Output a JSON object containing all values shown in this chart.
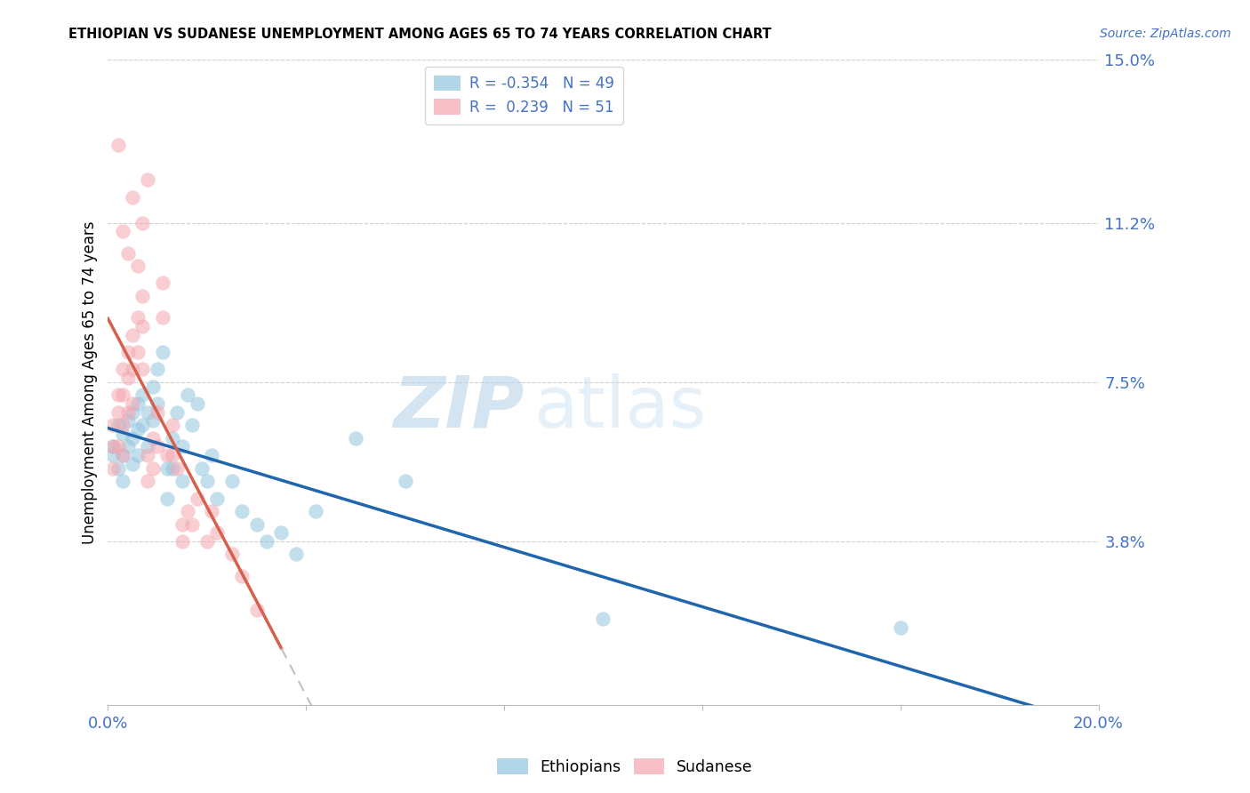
{
  "title": "ETHIOPIAN VS SUDANESE UNEMPLOYMENT AMONG AGES 65 TO 74 YEARS CORRELATION CHART",
  "source": "Source: ZipAtlas.com",
  "ylabel": "Unemployment Among Ages 65 to 74 years",
  "xlim": [
    0.0,
    0.2
  ],
  "ylim": [
    0.0,
    0.15
  ],
  "ytick_labels_right": [
    "15.0%",
    "11.2%",
    "7.5%",
    "3.8%"
  ],
  "ytick_values_right": [
    0.15,
    0.112,
    0.075,
    0.038
  ],
  "watermark_zip": "ZIP",
  "watermark_atlas": "atlas",
  "legend_ethiopians_R": "-0.354",
  "legend_ethiopians_N": "49",
  "legend_sudanese_R": "0.239",
  "legend_sudanese_N": "51",
  "ethiopian_color": "#92c5de",
  "sudanese_color": "#f4a6b0",
  "trend_ethiopian_color": "#2166ac",
  "trend_sudanese_color": "#d6604d",
  "trend_extension_color": "#c0c0c0",
  "ethiopian_x": [
    0.001,
    0.001,
    0.002,
    0.002,
    0.003,
    0.003,
    0.003,
    0.004,
    0.004,
    0.005,
    0.005,
    0.005,
    0.006,
    0.006,
    0.006,
    0.007,
    0.007,
    0.008,
    0.008,
    0.009,
    0.009,
    0.01,
    0.01,
    0.011,
    0.012,
    0.012,
    0.013,
    0.013,
    0.014,
    0.015,
    0.015,
    0.016,
    0.017,
    0.018,
    0.019,
    0.02,
    0.021,
    0.022,
    0.025,
    0.027,
    0.03,
    0.032,
    0.035,
    0.038,
    0.042,
    0.05,
    0.06,
    0.1,
    0.16
  ],
  "ethiopian_y": [
    0.06,
    0.058,
    0.065,
    0.055,
    0.063,
    0.058,
    0.052,
    0.066,
    0.06,
    0.068,
    0.062,
    0.056,
    0.07,
    0.064,
    0.058,
    0.072,
    0.065,
    0.068,
    0.06,
    0.074,
    0.066,
    0.078,
    0.07,
    0.082,
    0.055,
    0.048,
    0.062,
    0.055,
    0.068,
    0.06,
    0.052,
    0.072,
    0.065,
    0.07,
    0.055,
    0.052,
    0.058,
    0.048,
    0.052,
    0.045,
    0.042,
    0.038,
    0.04,
    0.035,
    0.045,
    0.062,
    0.052,
    0.02,
    0.018
  ],
  "sudanese_x": [
    0.001,
    0.001,
    0.001,
    0.002,
    0.002,
    0.002,
    0.003,
    0.003,
    0.003,
    0.003,
    0.004,
    0.004,
    0.004,
    0.005,
    0.005,
    0.005,
    0.006,
    0.006,
    0.007,
    0.007,
    0.007,
    0.008,
    0.008,
    0.009,
    0.009,
    0.01,
    0.01,
    0.011,
    0.011,
    0.012,
    0.013,
    0.013,
    0.014,
    0.015,
    0.015,
    0.016,
    0.017,
    0.018,
    0.02,
    0.021,
    0.022,
    0.025,
    0.027,
    0.03,
    0.002,
    0.003,
    0.004,
    0.005,
    0.006,
    0.007,
    0.008
  ],
  "sudanese_y": [
    0.065,
    0.06,
    0.055,
    0.072,
    0.068,
    0.06,
    0.078,
    0.072,
    0.065,
    0.058,
    0.082,
    0.076,
    0.068,
    0.086,
    0.078,
    0.07,
    0.09,
    0.082,
    0.095,
    0.088,
    0.078,
    0.058,
    0.052,
    0.062,
    0.055,
    0.068,
    0.06,
    0.098,
    0.09,
    0.058,
    0.065,
    0.058,
    0.055,
    0.042,
    0.038,
    0.045,
    0.042,
    0.048,
    0.038,
    0.045,
    0.04,
    0.035,
    0.03,
    0.022,
    0.13,
    0.11,
    0.105,
    0.118,
    0.102,
    0.112,
    0.122
  ],
  "sud_trend_solid_end": 0.035,
  "eth_trend_start": 0.0,
  "eth_trend_end": 0.2
}
